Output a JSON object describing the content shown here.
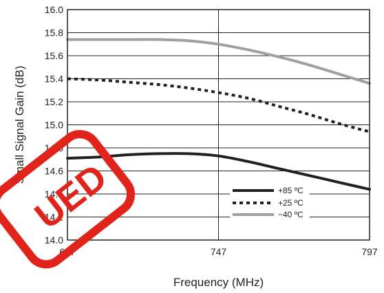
{
  "chart_data": {
    "type": "line",
    "title": "",
    "xlabel": "Frequency (MHz)",
    "ylabel": "Small Signal Gain (dB)",
    "xlim": [
      697,
      797
    ],
    "ylim": [
      14.0,
      16.0
    ],
    "x_ticks": [
      "697",
      "747",
      "797"
    ],
    "y_ticks": [
      "14.0",
      "14.2",
      "14.4",
      "14.6",
      "14.8",
      "15.0",
      "15.2",
      "15.4",
      "15.6",
      "15.8",
      "16.0"
    ],
    "grid": "horizontal every 0.2 dB, vertical at 747",
    "legend_position": "lower-right",
    "series": [
      {
        "name": "+85 ºC",
        "style": "solid",
        "color": "#231f20",
        "x": [
          697,
          707,
          717,
          727,
          737,
          747,
          757,
          767,
          777,
          787,
          797
        ],
        "y": [
          14.71,
          14.72,
          14.74,
          14.75,
          14.75,
          14.73,
          14.68,
          14.62,
          14.56,
          14.5,
          14.44
        ]
      },
      {
        "name": "+25 ºC",
        "style": "dotted",
        "color": "#231f20",
        "x": [
          697,
          707,
          717,
          727,
          737,
          747,
          757,
          767,
          777,
          787,
          797
        ],
        "y": [
          15.4,
          15.39,
          15.37,
          15.35,
          15.32,
          15.28,
          15.23,
          15.16,
          15.09,
          15.01,
          14.94
        ]
      },
      {
        "name": "−40 ºC",
        "style": "solid",
        "color": "#a0a0a0",
        "x": [
          697,
          707,
          717,
          727,
          737,
          747,
          757,
          767,
          777,
          787,
          797
        ],
        "y": [
          15.74,
          15.74,
          15.74,
          15.74,
          15.73,
          15.7,
          15.65,
          15.59,
          15.52,
          15.44,
          15.36
        ]
      }
    ]
  },
  "stamp": {
    "text": "UED",
    "color": "#e0241c"
  }
}
